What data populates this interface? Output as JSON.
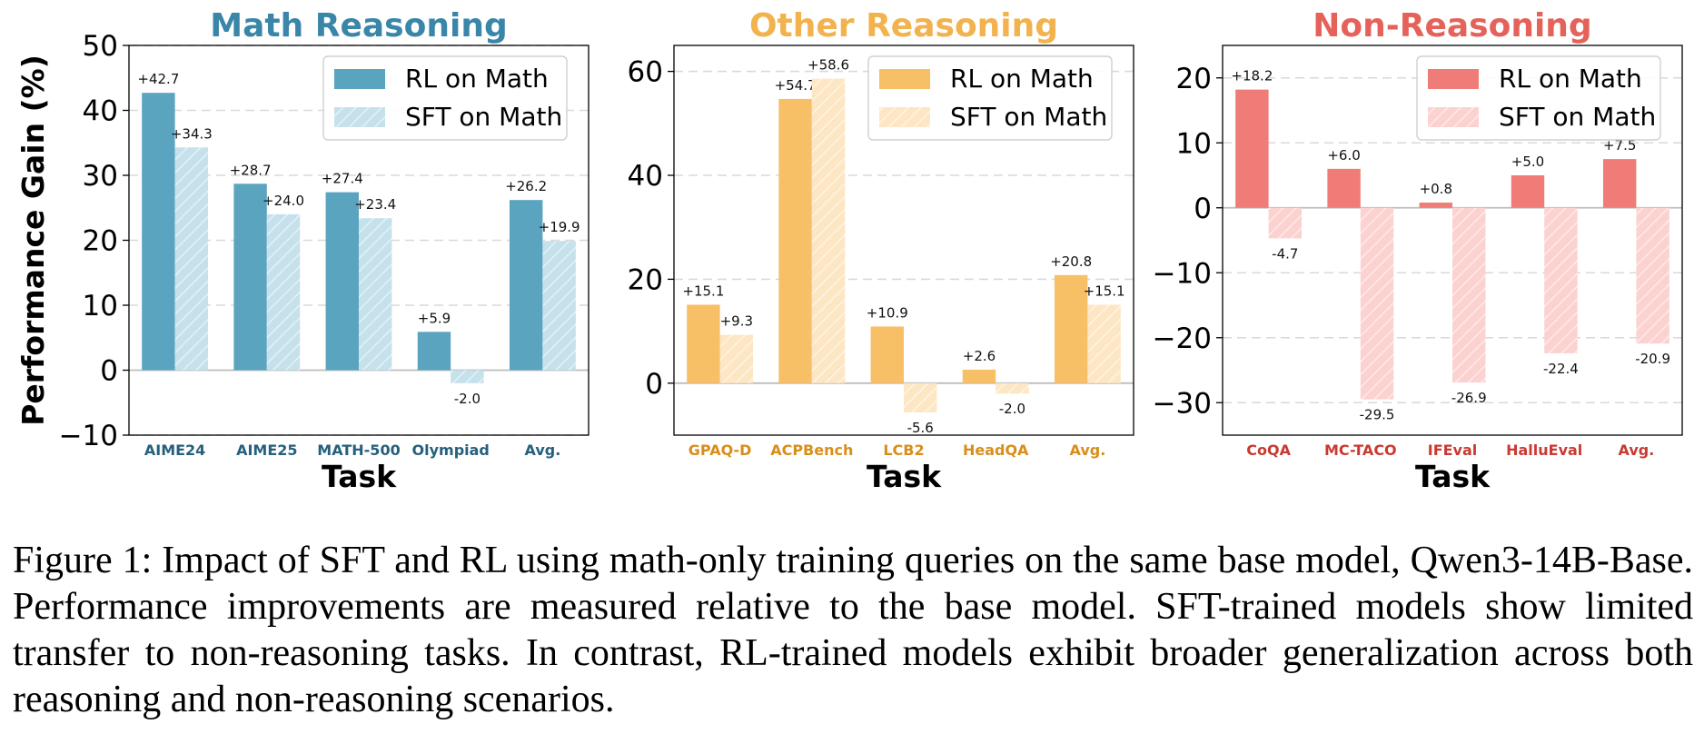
{
  "chart_data": [
    {
      "type": "bar",
      "title": "Math Reasoning",
      "title_color": "#3a86a8",
      "xlabel": "Task",
      "ylabel": "Performance Gain (%)",
      "categories": [
        "AIME24",
        "AIME25",
        "MATH-500",
        "Olympiad",
        "Avg."
      ],
      "category_label_color": "#26607c",
      "ylim": [
        -10,
        50
      ],
      "yticks": [
        -10,
        0,
        10,
        20,
        30,
        40,
        50
      ],
      "ytick_labels": [
        "−10",
        "0",
        "10",
        "20",
        "30",
        "40",
        "50"
      ],
      "grid": true,
      "legend": "top-right",
      "series": [
        {
          "name": "RL on Math",
          "values": [
            42.7,
            28.7,
            27.4,
            5.9,
            26.2
          ],
          "labels": [
            "+42.7",
            "+28.7",
            "+27.4",
            "+5.9",
            "+26.2"
          ],
          "color": "#5ba4c0",
          "hatch": false
        },
        {
          "name": "SFT on Math",
          "values": [
            34.3,
            24.0,
            23.4,
            -2.0,
            19.9
          ],
          "labels": [
            "+34.3",
            "+24.0",
            "+23.4",
            "-2.0",
            "+19.9"
          ],
          "color": "#c5e1ec",
          "hatch": true
        }
      ]
    },
    {
      "type": "bar",
      "title": "Other Reasoning",
      "title_color": "#f2b24d",
      "xlabel": "Task",
      "ylabel": "",
      "categories": [
        "GPAQ-D",
        "ACPBench",
        "LCB2",
        "HeadQA",
        "Avg."
      ],
      "category_label_color": "#d98e1a",
      "ylim": [
        -10,
        65
      ],
      "yticks": [
        0,
        20,
        40,
        60
      ],
      "ytick_labels": [
        "0",
        "20",
        "40",
        "60"
      ],
      "grid": true,
      "legend": "top-right",
      "series": [
        {
          "name": "RL on Math",
          "values": [
            15.1,
            54.7,
            10.9,
            2.6,
            20.8
          ],
          "labels": [
            "+15.1",
            "+54.7",
            "+10.9",
            "+2.6",
            "+20.8"
          ],
          "color": "#f7bf66",
          "hatch": false
        },
        {
          "name": "SFT on Math",
          "values": [
            9.3,
            58.6,
            -5.6,
            -2.0,
            15.1
          ],
          "labels": [
            "+9.3",
            "+58.6",
            "-5.6",
            "-2.0",
            "+15.1"
          ],
          "color": "#fde6c4",
          "hatch": true
        }
      ]
    },
    {
      "type": "bar",
      "title": "Non-Reasoning",
      "title_color": "#e5625a",
      "xlabel": "Task",
      "ylabel": "",
      "categories": [
        "CoQA",
        "MC-TACO",
        "IFEval",
        "HalluEval",
        "Avg."
      ],
      "category_label_color": "#c93a32",
      "ylim": [
        -35,
        25
      ],
      "yticks": [
        -30,
        -20,
        -10,
        0,
        10,
        20
      ],
      "ytick_labels": [
        "−30",
        "−20",
        "−10",
        "0",
        "10",
        "20"
      ],
      "grid": true,
      "legend": "top-right",
      "series": [
        {
          "name": "RL on Math",
          "values": [
            18.2,
            6.0,
            0.8,
            5.0,
            7.5
          ],
          "labels": [
            "+18.2",
            "+6.0",
            "+0.8",
            "+5.0",
            "+7.5"
          ],
          "color": "#ef7c76",
          "hatch": false
        },
        {
          "name": "SFT on Math",
          "values": [
            -4.7,
            -29.5,
            -26.9,
            -22.4,
            -20.9
          ],
          "labels": [
            "-4.7",
            "-29.5",
            "-26.9",
            "-22.4",
            "-20.9"
          ],
          "color": "#fbd2cf",
          "hatch": true
        }
      ]
    }
  ],
  "caption": "Figure 1: Impact of SFT and RL using math-only training queries on the same base model, Qwen3-14B-Base. Performance improvements are measured relative to the base model. SFT-trained models show limited transfer to non-reasoning tasks. In contrast, RL-trained models exhibit broader generalization across both reasoning and non-reasoning scenarios."
}
